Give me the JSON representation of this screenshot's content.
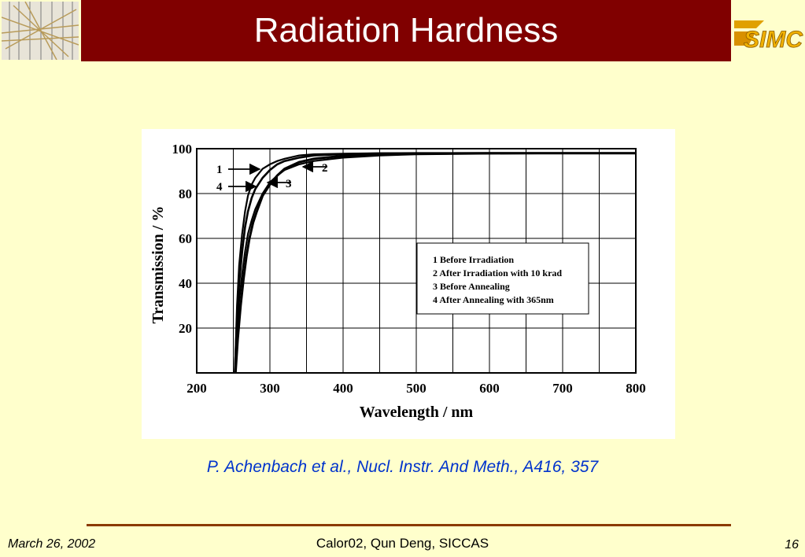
{
  "slide": {
    "title": "Radiation Hardness",
    "citation": "P. Achenbach et al., Nucl. Instr. And Meth., A416, 357",
    "footer_date": "March 26, 2002",
    "footer_center": "Calor02, Qun Deng, SICCAS",
    "page_number": "16",
    "logo_text": "SIMC",
    "colors": {
      "header_bar": "#800000",
      "background": "#ffffcc",
      "citation": "#0033cc",
      "footer_rule": "#8b3a00"
    }
  },
  "chart_data": {
    "type": "line",
    "title": "",
    "xlabel": "Wavelength / nm",
    "ylabel": "Transmission / %",
    "xlim": [
      200,
      800
    ],
    "ylim": [
      0,
      100
    ],
    "x_ticks": [
      "200",
      "300",
      "400",
      "500",
      "600",
      "700",
      "800"
    ],
    "y_ticks": [
      "20",
      "40",
      "60",
      "80",
      "100"
    ],
    "x_tick_values": [
      200,
      300,
      400,
      500,
      600,
      700,
      800
    ],
    "y_tick_values": [
      20,
      40,
      60,
      80,
      100
    ],
    "grid": true,
    "legend_position": "center-right",
    "legend": [
      "1  Before Irradiation",
      "2  After Irradiation with 10 krad",
      "3  Before Annealing",
      "4  After Annealing with 365nm"
    ],
    "curve_labels": [
      "1",
      "2",
      "3",
      "4"
    ],
    "series": [
      {
        "name": "1",
        "x": [
          252,
          255,
          258,
          262,
          266,
          270,
          275,
          280,
          290,
          300,
          310,
          320,
          340,
          360,
          400,
          450,
          500,
          600,
          700,
          800
        ],
        "y": [
          0,
          30,
          48,
          62,
          72,
          79,
          84,
          87,
          91,
          93,
          94.5,
          95.5,
          97,
          97.5,
          97.8,
          98,
          98,
          98,
          98,
          98
        ]
      },
      {
        "name": "2",
        "x": [
          252,
          255,
          258,
          262,
          266,
          270,
          275,
          280,
          290,
          300,
          310,
          320,
          340,
          360,
          400,
          450,
          500,
          600,
          700,
          800
        ],
        "y": [
          0,
          18,
          32,
          44,
          54,
          62,
          68,
          73,
          80,
          85,
          88,
          90.5,
          93,
          94.5,
          96,
          97,
          97.5,
          97.8,
          98,
          98
        ]
      },
      {
        "name": "3",
        "x": [
          253,
          256,
          260,
          264,
          268,
          272,
          277,
          282,
          290,
          300,
          310,
          320,
          340,
          360,
          400,
          450,
          500,
          600,
          700,
          800
        ],
        "y": [
          0,
          15,
          30,
          42,
          52,
          60,
          67,
          72,
          79,
          84,
          88,
          91,
          94,
          95.5,
          96.8,
          97.5,
          97.8,
          98,
          98,
          98
        ]
      },
      {
        "name": "4",
        "x": [
          252,
          255,
          258,
          262,
          266,
          270,
          275,
          280,
          290,
          300,
          310,
          320,
          340,
          360,
          400,
          450,
          500,
          600,
          700,
          800
        ],
        "y": [
          0,
          24,
          40,
          54,
          65,
          72,
          78,
          82,
          87,
          90.5,
          93,
          94.5,
          96,
          97,
          97.6,
          97.9,
          98,
          98,
          98,
          98
        ]
      }
    ]
  }
}
